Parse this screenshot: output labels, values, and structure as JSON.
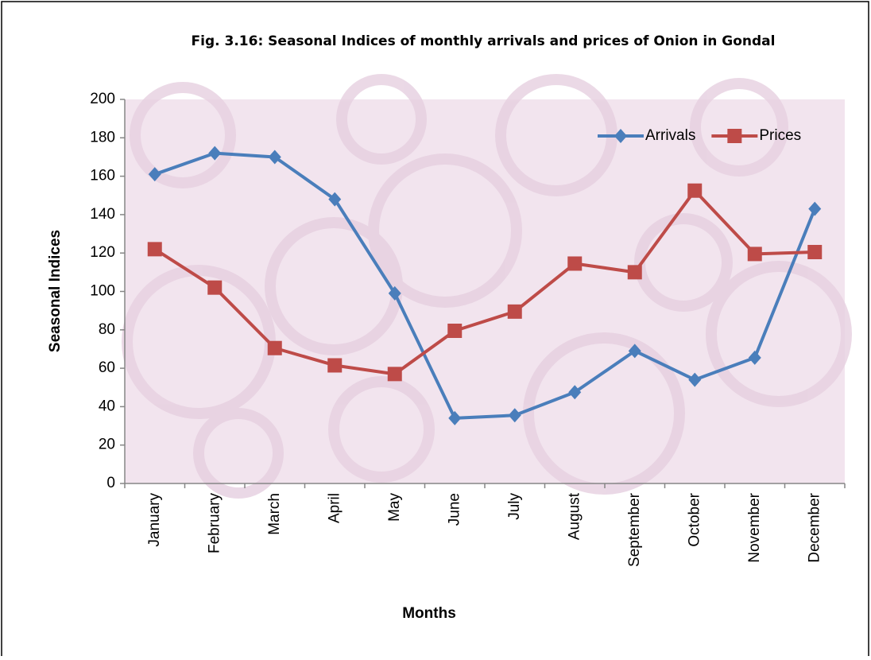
{
  "chart_data": {
    "type": "line",
    "title": "Fig. 3.16: Seasonal Indices of monthly arrivals  and prices of Onion in Gondal",
    "x_label": "Months",
    "y_label": "Seasonal Indices",
    "categories": [
      "January",
      "February",
      "March",
      "April",
      "May",
      "June",
      "July",
      "August",
      "September",
      "October",
      "November",
      "December"
    ],
    "series": [
      {
        "name": "Arrivals",
        "color": "#4a7ebb",
        "marker": "diamond",
        "values": [
          161,
          172,
          170,
          148,
          99,
          34,
          35.5,
          47.5,
          69,
          54,
          65.5,
          143
        ]
      },
      {
        "name": "Prices",
        "color": "#be4b48",
        "marker": "square",
        "values": [
          122,
          102,
          70.5,
          61.5,
          57,
          79.5,
          89.5,
          114.5,
          110,
          152.5,
          119.5,
          120.5
        ]
      }
    ],
    "ylim": [
      0,
      200
    ],
    "yticks": [
      0,
      20,
      40,
      60,
      80,
      100,
      120,
      140,
      160,
      180,
      200
    ],
    "grid": false,
    "legend": "top-right"
  }
}
